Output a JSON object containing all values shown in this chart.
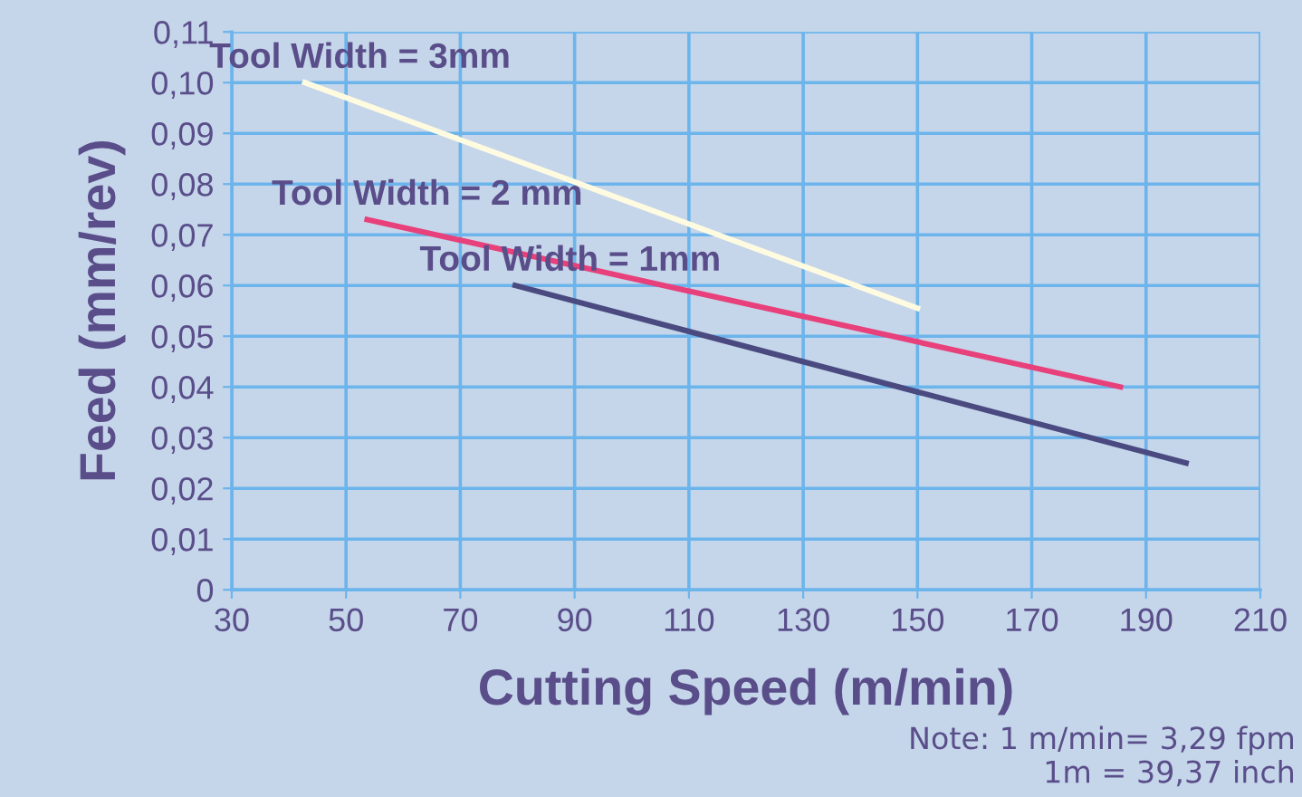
{
  "chart_data": {
    "type": "line",
    "xlabel": "Cutting Speed (m/min)",
    "ylabel": "Feed (mm/rev)",
    "series": [
      {
        "name": "Tool Width = 3mm",
        "color": "#fffbe0",
        "x": [
          42.8,
          150
        ],
        "values": [
          0.1,
          0.0555
        ]
      },
      {
        "name": "Tool Width = 2 mm",
        "color": "#e8407a",
        "x": [
          53.7,
          185.5
        ],
        "values": [
          0.073,
          0.04
        ]
      },
      {
        "name": "Tool Width = 1mm",
        "color": "#4a4a80",
        "x": [
          79.6,
          197
        ],
        "values": [
          0.06,
          0.025
        ]
      }
    ],
    "annotations": [
      "Note: 1 m/min= 3,29 fpm\n1m = 39,37 inch"
    ],
    "xlim": [
      30,
      210
    ],
    "xticks": [
      30,
      50,
      70,
      90,
      110,
      130,
      150,
      170,
      190,
      210
    ],
    "ylim": [
      0,
      0.11
    ],
    "yticks": [
      {
        "value": 0,
        "label": "0"
      },
      {
        "value": 0.01,
        "label": "0,01"
      },
      {
        "value": 0.02,
        "label": "0,02"
      },
      {
        "value": 0.03,
        "label": "0,03"
      },
      {
        "value": 0.04,
        "label": "0,04"
      },
      {
        "value": 0.05,
        "label": "0,05"
      },
      {
        "value": 0.06,
        "label": "0,06"
      },
      {
        "value": 0.07,
        "label": "0,07"
      },
      {
        "value": 0.08,
        "label": "0,08"
      },
      {
        "value": 0.09,
        "label": "0,09"
      },
      {
        "value": 0.1,
        "label": "0,10"
      },
      {
        "value": 0.11,
        "label": "0,11"
      }
    ],
    "grid": true,
    "marker": "none",
    "line_style": "solid"
  }
}
